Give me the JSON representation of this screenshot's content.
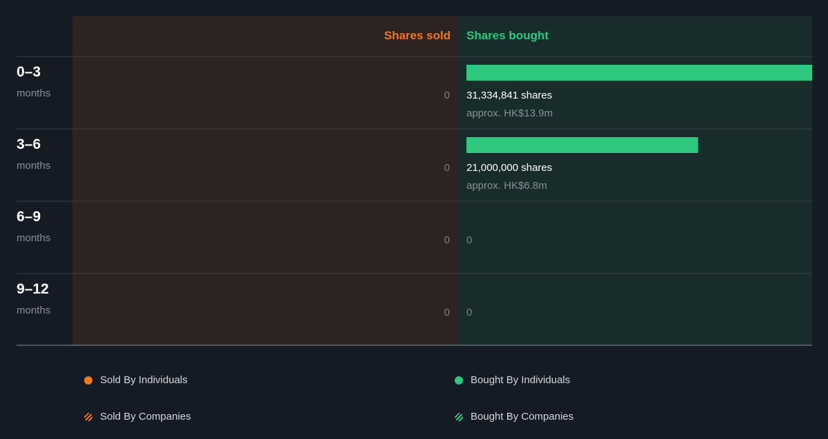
{
  "colors": {
    "sold": "#f2761a",
    "bought": "#2ec97f",
    "sold_bg": "#2d2321",
    "bought_bg": "#182c2b",
    "page_bg": "#151b24",
    "muted": "#8a8f97",
    "divider": "#3a3f46"
  },
  "chart_data": {
    "type": "bar",
    "orientation": "horizontal",
    "headers": {
      "sold": "Shares sold",
      "bought": "Shares bought"
    },
    "rows": [
      {
        "period": "0–3",
        "unit": "months",
        "sold_label": "0",
        "bought_shares": 31334841,
        "bought_label": "31,334,841 shares",
        "bought_value": "approx. HK$13.9m"
      },
      {
        "period": "3–6",
        "unit": "months",
        "sold_label": "0",
        "bought_shares": 21000000,
        "bought_label": "21,000,000 shares",
        "bought_value": "approx. HK$6.8m"
      },
      {
        "period": "6–9",
        "unit": "months",
        "sold_label": "0",
        "bought_shares": 0,
        "bought_label": "0",
        "bought_value": ""
      },
      {
        "period": "9–12",
        "unit": "months",
        "sold_label": "0",
        "bought_shares": 0,
        "bought_label": "0",
        "bought_value": ""
      }
    ],
    "xlim": [
      0,
      31334841
    ]
  },
  "legend": {
    "sold_individuals": "Sold By Individuals",
    "bought_individuals": "Bought By Individuals",
    "sold_companies": "Sold By Companies",
    "bought_companies": "Bought By Companies"
  }
}
